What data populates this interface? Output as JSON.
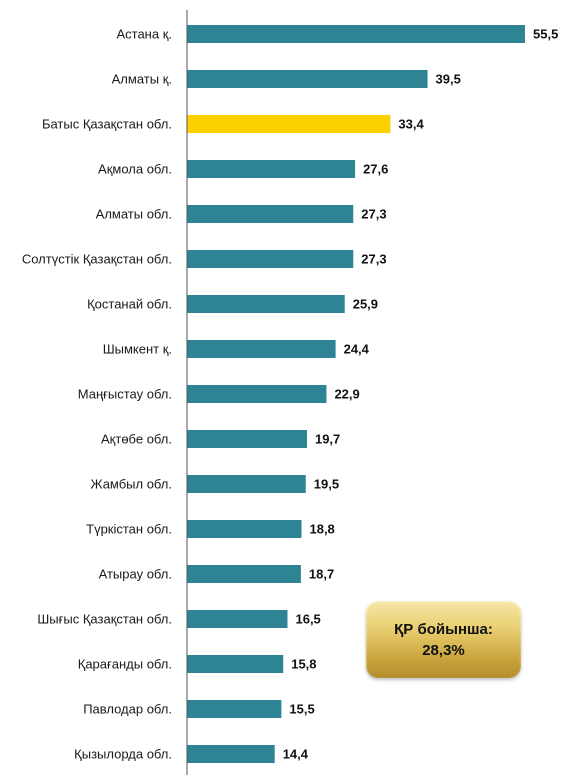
{
  "chart_data": {
    "type": "bar",
    "orientation": "horizontal",
    "categories": [
      "Астана қ.",
      "Алматы қ.",
      "Батыс Қазақстан обл.",
      "Ақмола обл.",
      "Алматы обл.",
      "Солтүстік Қазақстан обл.",
      "Қостанай обл.",
      "Шымкент қ.",
      "Маңғыстау обл.",
      "Ақтөбе обл.",
      "Жамбыл обл.",
      "Түркістан обл.",
      "Атырау обл.",
      "Шығыс Қазақстан обл.",
      "Қарағанды обл.",
      "Павлодар обл.",
      "Қызылорда обл."
    ],
    "values": [
      55.5,
      39.5,
      33.4,
      27.6,
      27.3,
      27.3,
      25.9,
      24.4,
      22.9,
      19.7,
      19.5,
      18.8,
      18.7,
      16.5,
      15.8,
      15.5,
      14.4
    ],
    "value_labels": [
      "55,5",
      "39,5",
      "33,4",
      "27,6",
      "27,3",
      "27,3",
      "25,9",
      "24,4",
      "22,9",
      "19,7",
      "19,5",
      "18,8",
      "18,7",
      "16,5",
      "15,8",
      "15,5",
      "14,4"
    ],
    "highlight_index": 2,
    "colors": {
      "bar": "#2e8394",
      "highlight": "#fdd000",
      "axis": "#555555"
    },
    "xlim": [
      0,
      55.5
    ],
    "grid": false,
    "legend": false
  },
  "callout": {
    "line1": "ҚР бойынша:",
    "line2": "28,3%"
  }
}
